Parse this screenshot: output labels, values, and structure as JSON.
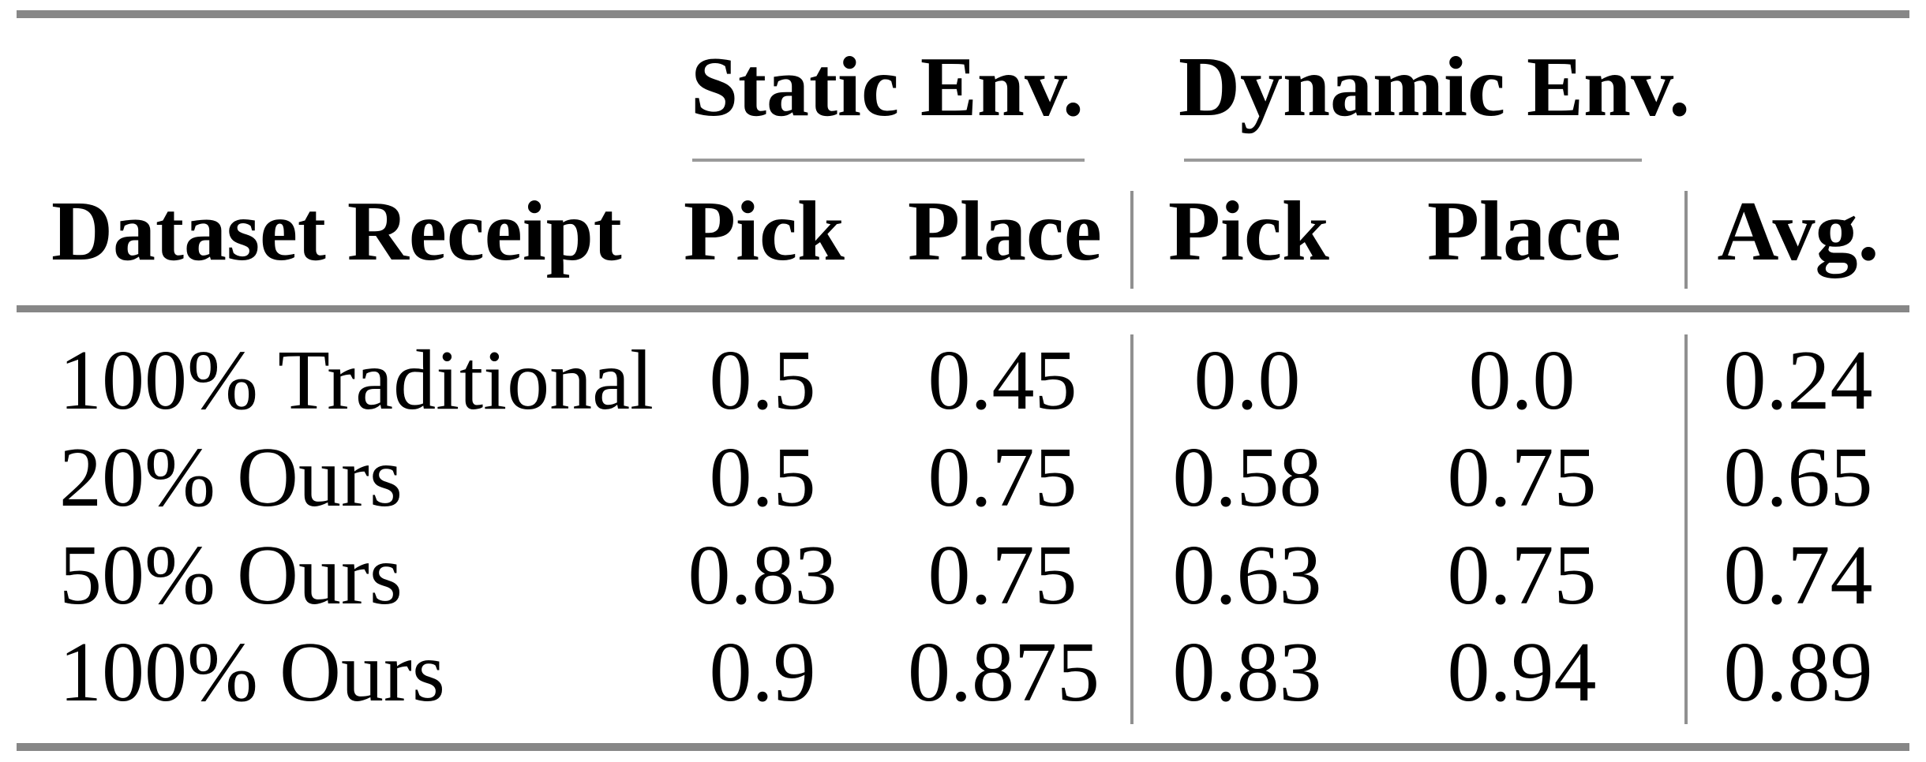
{
  "table": {
    "group_headers": [
      {
        "label": "Static Env."
      },
      {
        "label": "Dynamic Env."
      }
    ],
    "columns": [
      "Dataset Receipt",
      "Pick",
      "Place",
      "Pick",
      "Place",
      "Avg."
    ],
    "rows": [
      [
        "100% Traditional",
        "0.5",
        "0.45",
        "0.0",
        "0.0",
        "0.24"
      ],
      [
        "20% Ours",
        "0.5",
        "0.75",
        "0.58",
        "0.75",
        "0.65"
      ],
      [
        "50% Ours",
        "0.83",
        "0.75",
        "0.63",
        "0.75",
        "0.74"
      ],
      [
        "100% Ours",
        "0.9",
        "0.875",
        "0.83",
        "0.94",
        "0.89"
      ]
    ],
    "colors": {
      "thick_rule": "#878787",
      "thin_rule": "#9a9a9a",
      "vertical_rule": "#909090",
      "text": "#000000",
      "background": "#ffffff"
    }
  }
}
